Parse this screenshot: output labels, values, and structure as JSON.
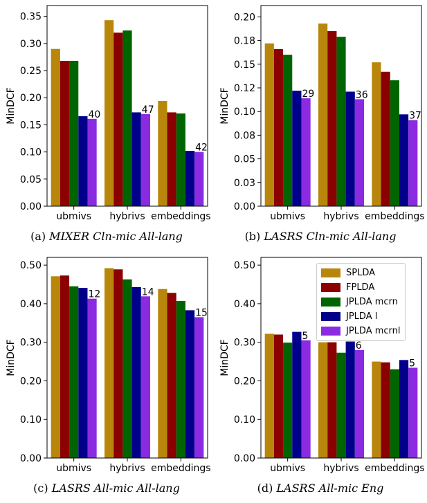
{
  "colors": [
    "#b8860b",
    "#8b0000",
    "#006400",
    "#00008b",
    "#8a2be2"
  ],
  "legend": {
    "entries": [
      "SPLDA",
      "FPLDA",
      "JPLDA mcrn",
      "JPLDA l",
      "JPLDA mcrnl"
    ]
  },
  "chart_data": [
    {
      "type": "bar",
      "caption_id": "(a)",
      "caption_title": "MIXER Cln-mic All-lang",
      "ylabel": "MinDCF",
      "xlabel": "",
      "categories": [
        "ubmivs",
        "hybrivs",
        "embeddings"
      ],
      "ylim": [
        0,
        0.37
      ],
      "yticks": [
        "0.00",
        "0.05",
        "0.10",
        "0.15",
        "0.20",
        "0.25",
        "0.30",
        "0.35"
      ],
      "ytick_values": [
        0,
        0.05,
        0.1,
        0.15,
        0.2,
        0.25,
        0.3,
        0.35
      ],
      "series": [
        {
          "name": "SPLDA",
          "values": [
            0.29,
            0.343,
            0.194
          ]
        },
        {
          "name": "FPLDA",
          "values": [
            0.268,
            0.32,
            0.173
          ]
        },
        {
          "name": "JPLDA mcrn",
          "values": [
            0.268,
            0.324,
            0.171
          ]
        },
        {
          "name": "JPLDA l",
          "values": [
            0.166,
            0.173,
            0.102
          ]
        },
        {
          "name": "JPLDA mcrnl",
          "values": [
            0.161,
            0.17,
            0.1
          ]
        }
      ],
      "annotations": [
        "40",
        "47",
        "42"
      ]
    },
    {
      "type": "bar",
      "caption_id": "(b)",
      "caption_title": "LASRS Cln-mic All-lang",
      "ylabel": "MinDCF",
      "xlabel": "",
      "categories": [
        "ubmivs",
        "hybrivs",
        "embeddings"
      ],
      "ylim": [
        0,
        0.212
      ],
      "yticks": [
        "0.00",
        "0.03",
        "0.05",
        "0.08",
        "0.10",
        "0.12",
        "0.15",
        "0.18",
        "0.20"
      ],
      "ytick_values": [
        0,
        0.025,
        0.05,
        0.075,
        0.1,
        0.125,
        0.15,
        0.175,
        0.2
      ],
      "series": [
        {
          "name": "SPLDA",
          "values": [
            0.172,
            0.193,
            0.152
          ]
        },
        {
          "name": "FPLDA",
          "values": [
            0.166,
            0.185,
            0.142
          ]
        },
        {
          "name": "JPLDA mcrn",
          "values": [
            0.16,
            0.179,
            0.133
          ]
        },
        {
          "name": "JPLDA l",
          "values": [
            0.122,
            0.121,
            0.097
          ]
        },
        {
          "name": "JPLDA mcrnl",
          "values": [
            0.114,
            0.113,
            0.091
          ]
        }
      ],
      "annotations": [
        "29",
        "36",
        "37"
      ]
    },
    {
      "type": "bar",
      "caption_id": "(c)",
      "caption_title": "LASRS All-mic All-lang",
      "ylabel": "MinDCF",
      "xlabel": "",
      "categories": [
        "ubmivs",
        "hybrivs",
        "embeddings"
      ],
      "ylim": [
        0,
        0.52
      ],
      "yticks": [
        "0.00",
        "0.10",
        "0.20",
        "0.30",
        "0.40",
        "0.50"
      ],
      "ytick_values": [
        0,
        0.1,
        0.2,
        0.3,
        0.4,
        0.5
      ],
      "series": [
        {
          "name": "SPLDA",
          "values": [
            0.471,
            0.492,
            0.438
          ]
        },
        {
          "name": "FPLDA",
          "values": [
            0.473,
            0.489,
            0.428
          ]
        },
        {
          "name": "JPLDA mcrn",
          "values": [
            0.445,
            0.463,
            0.407
          ]
        },
        {
          "name": "JPLDA l",
          "values": [
            0.441,
            0.443,
            0.383
          ]
        },
        {
          "name": "JPLDA mcrnl",
          "values": [
            0.413,
            0.419,
            0.365
          ]
        }
      ],
      "annotations": [
        "12",
        "14",
        "15"
      ]
    },
    {
      "type": "bar",
      "caption_id": "(d)",
      "caption_title": "LASRS All-mic Eng",
      "ylabel": "MinDCF",
      "xlabel": "",
      "categories": [
        "ubmivs",
        "hybrivs",
        "embeddings"
      ],
      "ylim": [
        0,
        0.52
      ],
      "yticks": [
        "0.00",
        "0.10",
        "0.20",
        "0.30",
        "0.40",
        "0.50"
      ],
      "ytick_values": [
        0,
        0.1,
        0.2,
        0.3,
        0.4,
        0.5
      ],
      "legend_position": "upper right",
      "series": [
        {
          "name": "SPLDA",
          "values": [
            0.322,
            0.3,
            0.25
          ]
        },
        {
          "name": "FPLDA",
          "values": [
            0.32,
            0.3,
            0.248
          ]
        },
        {
          "name": "JPLDA mcrn",
          "values": [
            0.299,
            0.273,
            0.23
          ]
        },
        {
          "name": "JPLDA l",
          "values": [
            0.327,
            0.302,
            0.254
          ]
        },
        {
          "name": "JPLDA mcrnl",
          "values": [
            0.305,
            0.28,
            0.234
          ]
        }
      ],
      "annotations": [
        "5",
        "6",
        "5"
      ]
    }
  ]
}
